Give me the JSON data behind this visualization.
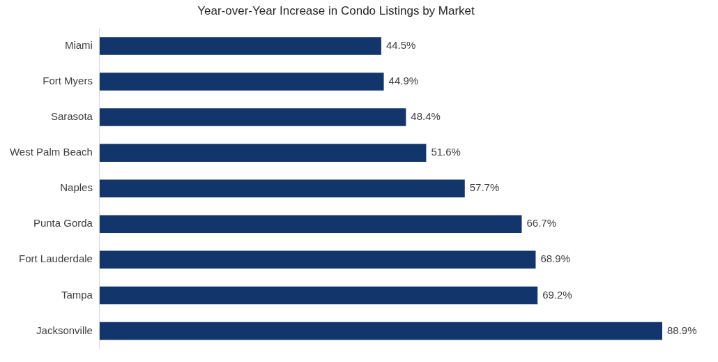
{
  "chart_data": {
    "type": "bar",
    "orientation": "horizontal",
    "title": "Year-over-Year Increase in Condo Listings by Market",
    "categories": [
      "Miami",
      "Fort Myers",
      "Sarasota",
      "West Palm Beach",
      "Naples",
      "Punta Gorda",
      "Fort Lauderdale",
      "Tampa",
      "Jacksonville"
    ],
    "values": [
      44.5,
      44.9,
      48.4,
      51.6,
      57.7,
      66.7,
      68.9,
      69.2,
      88.9
    ],
    "value_labels": [
      "44.5%",
      "44.9%",
      "48.4%",
      "51.6%",
      "57.7%",
      "66.7%",
      "68.9%",
      "69.2%",
      "88.9%"
    ],
    "color": "#12356b",
    "tick_labels": "y",
    "grid": false,
    "legend": false
  }
}
